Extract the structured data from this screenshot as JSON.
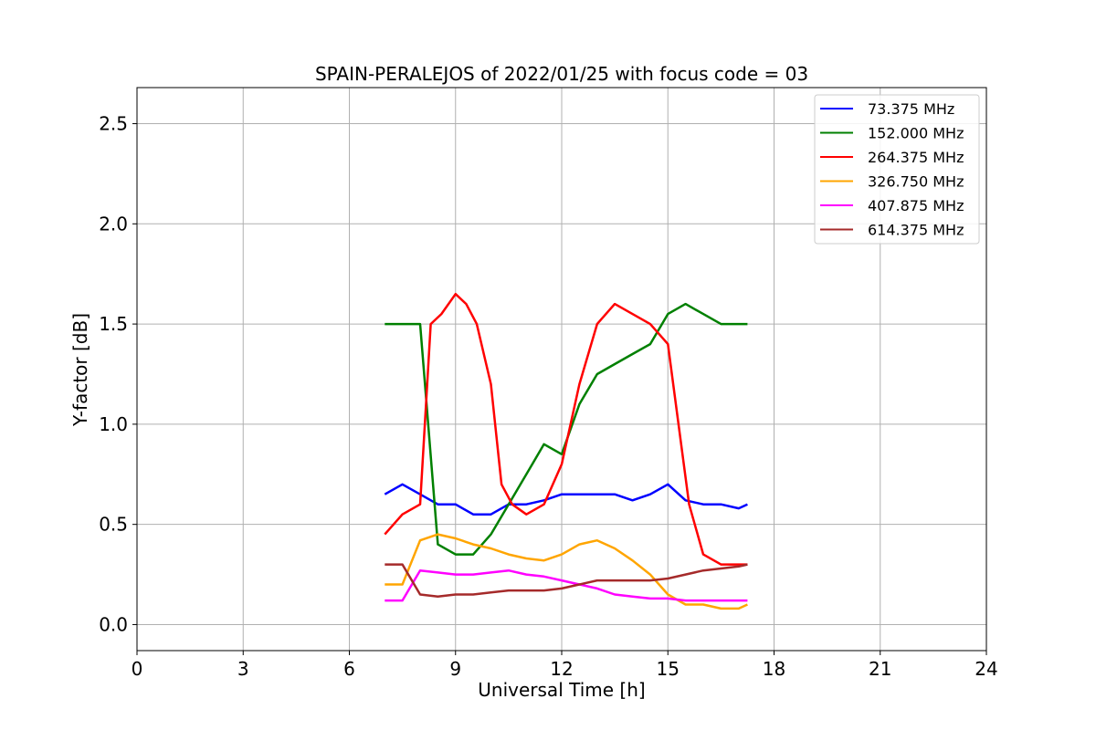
{
  "chart_data": {
    "type": "line",
    "title": "SPAIN-PERALEJOS of 2022/01/25 with focus code = 03",
    "xlabel": "Universal Time [h]",
    "ylabel": "Y-factor [dB]",
    "xlim": [
      0,
      24
    ],
    "ylim": [
      -0.13,
      2.68
    ],
    "xticks": [
      "0",
      "3",
      "6",
      "9",
      "12",
      "15",
      "18",
      "21",
      "24"
    ],
    "yticks": [
      "0.0",
      "0.5",
      "1.0",
      "1.5",
      "2.0",
      "2.5"
    ],
    "grid": true,
    "legend_position": "top-right",
    "series": [
      {
        "name": " 73.375 MHz",
        "color": "#0000ff",
        "x": [
          7.0,
          7.5,
          8.0,
          8.5,
          9.0,
          9.5,
          10.0,
          10.5,
          11.0,
          11.5,
          12.0,
          12.5,
          13.0,
          13.5,
          14.0,
          14.5,
          15.0,
          15.5,
          16.0,
          16.5,
          17.0,
          17.25
        ],
        "y": [
          0.65,
          0.7,
          0.65,
          0.6,
          0.6,
          0.55,
          0.55,
          0.6,
          0.6,
          0.62,
          0.65,
          0.65,
          0.65,
          0.65,
          0.62,
          0.65,
          0.7,
          0.62,
          0.6,
          0.6,
          0.58,
          0.6
        ]
      },
      {
        "name": "152.000 MHz",
        "color": "#008000",
        "x": [
          7.0,
          7.5,
          8.0,
          8.5,
          9.0,
          9.5,
          10.0,
          10.5,
          11.0,
          11.5,
          12.0,
          12.5,
          13.0,
          13.5,
          14.0,
          14.5,
          15.0,
          15.5,
          16.0,
          16.5,
          17.0,
          17.25
        ],
        "y": [
          1.5,
          1.5,
          1.5,
          0.4,
          0.35,
          0.35,
          0.45,
          0.6,
          0.75,
          0.9,
          0.85,
          1.1,
          1.25,
          1.3,
          1.35,
          1.4,
          1.55,
          1.6,
          1.55,
          1.5,
          1.5,
          1.5
        ]
      },
      {
        "name": "264.375 MHz",
        "color": "#ff0000",
        "x": [
          7.0,
          7.5,
          8.0,
          8.3,
          8.6,
          9.0,
          9.3,
          9.6,
          10.0,
          10.3,
          10.6,
          11.0,
          11.5,
          12.0,
          12.5,
          13.0,
          13.5,
          14.0,
          14.5,
          15.0,
          15.3,
          15.6,
          16.0,
          16.5,
          17.0,
          17.25
        ],
        "y": [
          0.45,
          0.55,
          0.6,
          1.5,
          1.55,
          1.65,
          1.6,
          1.5,
          1.2,
          0.7,
          0.6,
          0.55,
          0.6,
          0.8,
          1.2,
          1.5,
          1.6,
          1.55,
          1.5,
          1.4,
          1.0,
          0.6,
          0.35,
          0.3,
          0.3,
          0.3
        ]
      },
      {
        "name": "326.750 MHz",
        "color": "#ffa500",
        "x": [
          7.0,
          7.5,
          8.0,
          8.5,
          9.0,
          9.5,
          10.0,
          10.5,
          11.0,
          11.5,
          12.0,
          12.5,
          13.0,
          13.5,
          14.0,
          14.5,
          15.0,
          15.5,
          16.0,
          16.5,
          17.0,
          17.25
        ],
        "y": [
          0.2,
          0.2,
          0.42,
          0.45,
          0.43,
          0.4,
          0.38,
          0.35,
          0.33,
          0.32,
          0.35,
          0.4,
          0.42,
          0.38,
          0.32,
          0.25,
          0.15,
          0.1,
          0.1,
          0.08,
          0.08,
          0.1
        ]
      },
      {
        "name": "407.875 MHz",
        "color": "#ff00ff",
        "x": [
          7.0,
          7.5,
          8.0,
          8.5,
          9.0,
          9.5,
          10.0,
          10.5,
          11.0,
          11.5,
          12.0,
          12.5,
          13.0,
          13.5,
          14.0,
          14.5,
          15.0,
          15.5,
          16.0,
          16.5,
          17.0,
          17.25
        ],
        "y": [
          0.12,
          0.12,
          0.27,
          0.26,
          0.25,
          0.25,
          0.26,
          0.27,
          0.25,
          0.24,
          0.22,
          0.2,
          0.18,
          0.15,
          0.14,
          0.13,
          0.13,
          0.12,
          0.12,
          0.12,
          0.12,
          0.12
        ]
      },
      {
        "name": "614.375 MHz",
        "color": "#a52a2a",
        "x": [
          7.0,
          7.5,
          8.0,
          8.5,
          9.0,
          9.5,
          10.0,
          10.5,
          11.0,
          11.5,
          12.0,
          12.5,
          13.0,
          13.5,
          14.0,
          14.5,
          15.0,
          15.5,
          16.0,
          16.5,
          17.0,
          17.25
        ],
        "y": [
          0.3,
          0.3,
          0.15,
          0.14,
          0.15,
          0.15,
          0.16,
          0.17,
          0.17,
          0.17,
          0.18,
          0.2,
          0.22,
          0.22,
          0.22,
          0.22,
          0.23,
          0.25,
          0.27,
          0.28,
          0.29,
          0.3
        ]
      }
    ]
  }
}
